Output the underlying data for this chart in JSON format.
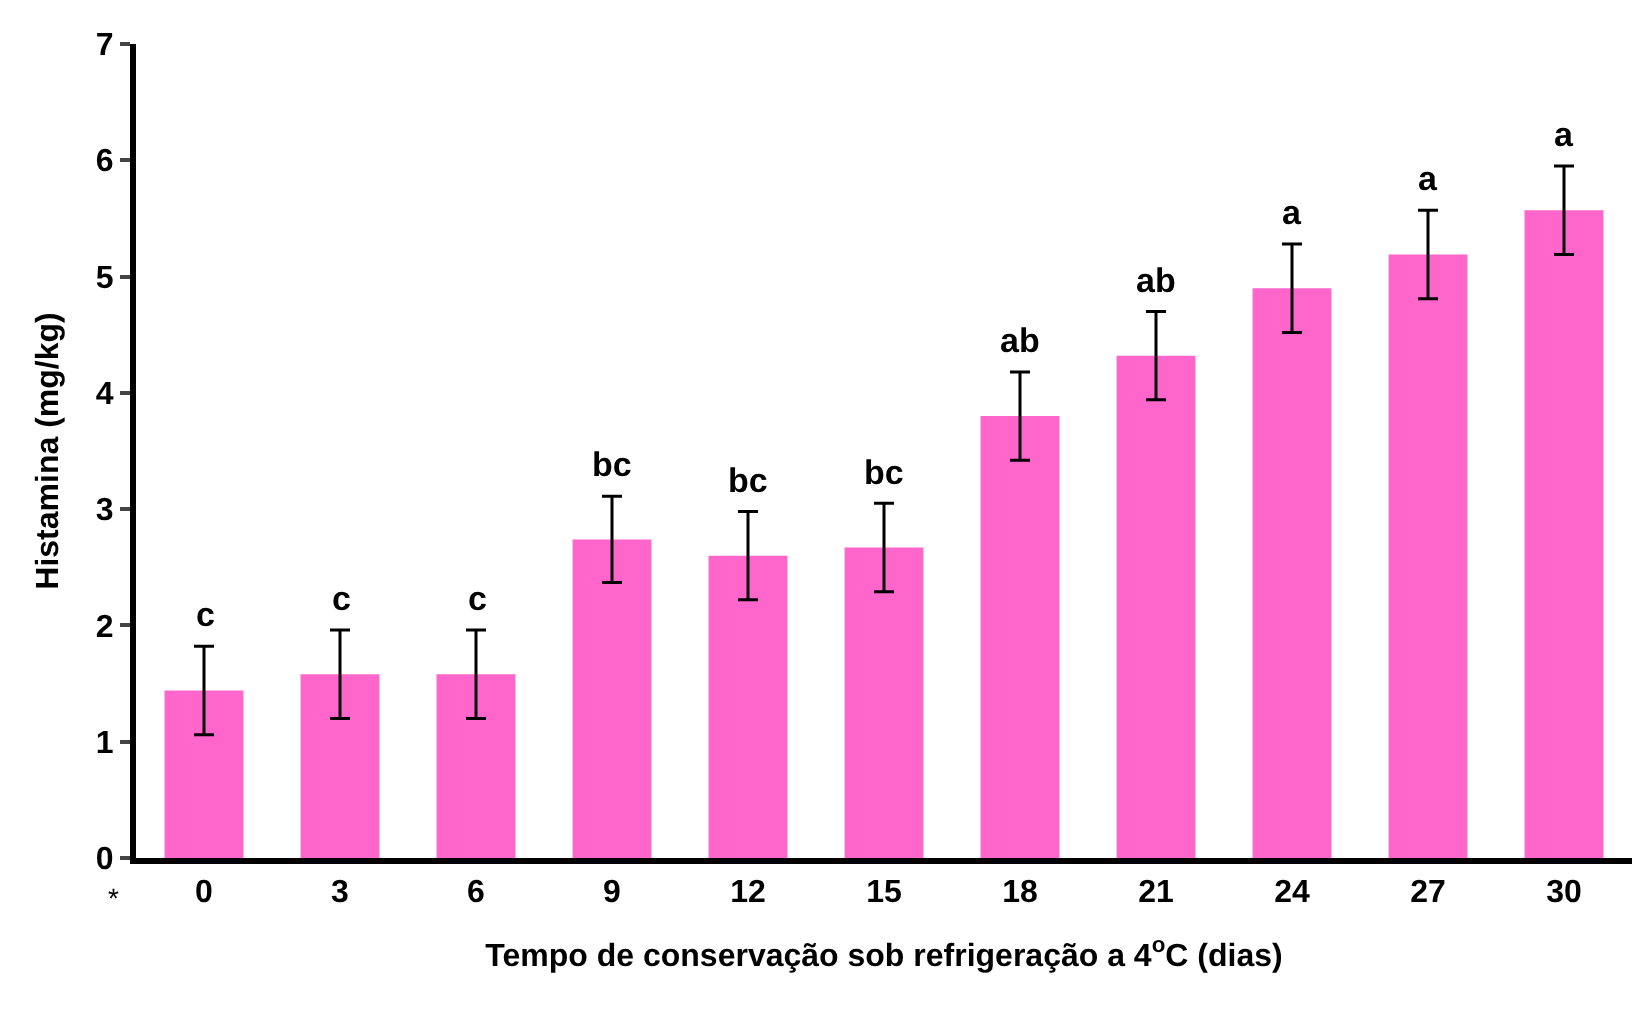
{
  "chart_data": {
    "type": "bar",
    "xlabel": "Tempo de conservação sob refrigeração a 4$^{o}$C (dias)",
    "ylabel": "Histamina (mg/kg)",
    "categories": [
      "0",
      "3",
      "6",
      "9",
      "12",
      "15",
      "18",
      "21",
      "24",
      "27",
      "30"
    ],
    "values": [
      1.44,
      1.58,
      1.58,
      2.74,
      2.6,
      2.67,
      3.8,
      4.32,
      4.9,
      5.19,
      5.57
    ],
    "errors": [
      0.38,
      0.38,
      0.38,
      0.37,
      0.38,
      0.38,
      0.38,
      0.38,
      0.38,
      0.38,
      0.38
    ],
    "color": "#ff66cc",
    "ylim": [
      0,
      7
    ],
    "yticks": [
      0,
      1,
      2,
      3,
      4,
      5,
      6,
      7
    ],
    "annotations": [
      {
        "text": "c",
        "x": "0",
        "y": 1.82
      },
      {
        "text": "c",
        "x": "3",
        "y": 1.96
      },
      {
        "text": "c",
        "x": "6",
        "y": 1.96
      },
      {
        "text": "bc",
        "x": "9",
        "y": 3.11
      },
      {
        "text": "bc",
        "x": "12",
        "y": 2.98
      },
      {
        "text": "bc",
        "x": "15",
        "y": 3.05
      },
      {
        "text": "ab",
        "x": "18",
        "y": 4.18
      },
      {
        "text": "ab",
        "x": "21",
        "y": 4.7
      },
      {
        "text": "a",
        "x": "24",
        "y": 5.28
      },
      {
        "text": "a",
        "x": "27",
        "y": 5.57
      },
      {
        "text": "a",
        "x": "30",
        "y": 5.95
      },
      "*"
    ]
  }
}
